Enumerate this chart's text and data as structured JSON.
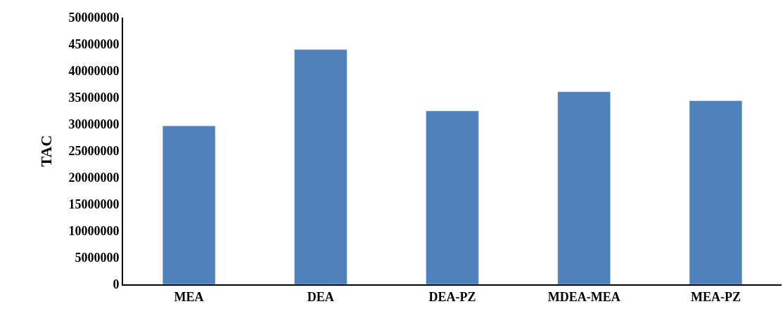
{
  "chart_data": {
    "type": "bar",
    "ylabel": "TAC",
    "categories": [
      "MEA",
      "DEA",
      "DEA-PZ",
      "MDEA-MEA",
      "MEA-PZ"
    ],
    "values": [
      29700000,
      44000000,
      32500000,
      36100000,
      34400000
    ],
    "color": "#4f81bd",
    "ylim": [
      0,
      50000000
    ],
    "yticks": [
      0,
      5000000,
      10000000,
      15000000,
      20000000,
      25000000,
      30000000,
      35000000,
      40000000,
      45000000,
      50000000
    ],
    "grid": false
  }
}
